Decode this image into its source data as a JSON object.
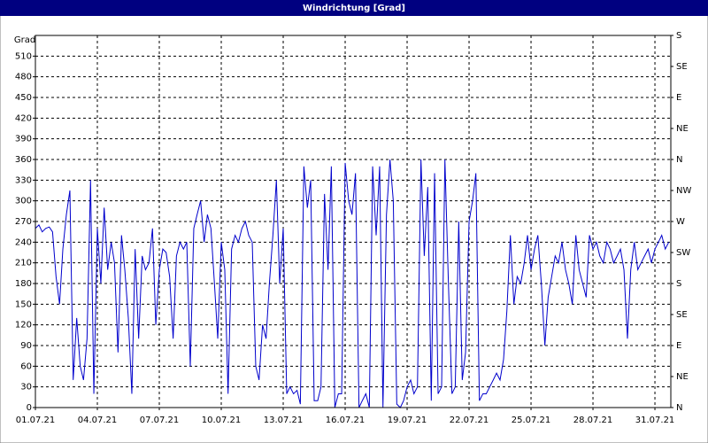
{
  "chart_data": {
    "type": "line",
    "title": "Windrichtung [Grad]",
    "y_label": "Grad",
    "x": [
      1,
      1.17,
      1.33,
      1.5,
      1.67,
      1.83,
      2,
      2.17,
      2.33,
      2.5,
      2.67,
      2.83,
      3,
      3.17,
      3.33,
      3.5,
      3.67,
      3.83,
      4,
      4.17,
      4.33,
      4.5,
      4.67,
      4.83,
      5,
      5.17,
      5.33,
      5.5,
      5.67,
      5.83,
      6,
      6.17,
      6.33,
      6.5,
      6.67,
      6.83,
      7,
      7.17,
      7.33,
      7.5,
      7.67,
      7.83,
      8,
      8.17,
      8.33,
      8.5,
      8.67,
      8.83,
      9,
      9.17,
      9.33,
      9.5,
      9.67,
      9.83,
      10,
      10.17,
      10.33,
      10.5,
      10.67,
      10.83,
      11,
      11.17,
      11.33,
      11.5,
      11.67,
      11.83,
      12,
      12.17,
      12.33,
      12.5,
      12.67,
      12.83,
      13,
      13.17,
      13.33,
      13.5,
      13.67,
      13.83,
      14,
      14.17,
      14.33,
      14.5,
      14.67,
      14.83,
      15,
      15.17,
      15.33,
      15.5,
      15.67,
      15.83,
      16,
      16.17,
      16.33,
      16.5,
      16.67,
      16.83,
      17,
      17.17,
      17.33,
      17.5,
      17.67,
      17.83,
      18,
      18.17,
      18.33,
      18.5,
      18.67,
      18.83,
      19,
      19.17,
      19.33,
      19.5,
      19.67,
      19.83,
      20,
      20.17,
      20.33,
      20.5,
      20.67,
      20.83,
      21,
      21.17,
      21.33,
      21.5,
      21.67,
      21.83,
      22,
      22.17,
      22.33,
      22.5,
      22.67,
      22.83,
      23,
      23.17,
      23.33,
      23.5,
      23.67,
      23.83,
      24,
      24.17,
      24.33,
      24.5,
      24.67,
      24.83,
      25,
      25.17,
      25.33,
      25.5,
      25.67,
      25.83,
      26,
      26.17,
      26.33,
      26.5,
      26.67,
      26.83,
      27,
      27.17,
      27.33,
      27.5,
      27.67,
      27.83,
      28,
      28.17,
      28.33,
      28.5,
      28.67,
      28.83,
      29,
      29.17,
      29.33,
      29.5,
      29.67,
      29.83,
      30,
      30.17,
      30.33,
      30.5,
      30.67,
      30.83,
      31,
      31.17,
      31.33,
      31.5,
      31.67
    ],
    "series": [
      {
        "name": "Windrichtung",
        "color": "#0000cc",
        "values": [
          260,
          265,
          255,
          260,
          262,
          255,
          190,
          150,
          230,
          280,
          315,
          40,
          130,
          60,
          40,
          100,
          330,
          20,
          260,
          180,
          290,
          200,
          240,
          210,
          80,
          250,
          200,
          130,
          20,
          230,
          100,
          220,
          200,
          210,
          260,
          120,
          200,
          230,
          225,
          190,
          100,
          220,
          240,
          230,
          240,
          60,
          260,
          280,
          300,
          240,
          280,
          260,
          180,
          100,
          240,
          200,
          20,
          230,
          250,
          240,
          260,
          270,
          250,
          240,
          60,
          40,
          120,
          100,
          180,
          250,
          330,
          180,
          260,
          20,
          30,
          20,
          25,
          5,
          350,
          290,
          330,
          10,
          10,
          30,
          310,
          200,
          350,
          0,
          20,
          20,
          355,
          300,
          280,
          340,
          0,
          10,
          20,
          0,
          350,
          250,
          350,
          0,
          280,
          360,
          300,
          5,
          0,
          10,
          30,
          40,
          20,
          30,
          360,
          220,
          320,
          10,
          340,
          20,
          30,
          360,
          180,
          20,
          30,
          270,
          40,
          80,
          270,
          300,
          340,
          10,
          20,
          20,
          30,
          40,
          50,
          40,
          70,
          140,
          250,
          150,
          190,
          180,
          210,
          250,
          200,
          230,
          250,
          180,
          90,
          160,
          190,
          220,
          210,
          240,
          200,
          180,
          150,
          250,
          200,
          180,
          160,
          250,
          230,
          240,
          220,
          210,
          240,
          230,
          210,
          220,
          230,
          200,
          100,
          200,
          240,
          200,
          210,
          220,
          230,
          210,
          230,
          240,
          250,
          230,
          240
        ]
      }
    ],
    "xlim": [
      1,
      31.77
    ],
    "xticks": [
      {
        "value": 1,
        "label": "01.07.21"
      },
      {
        "value": 4,
        "label": "04.07.21"
      },
      {
        "value": 7,
        "label": "07.07.21"
      },
      {
        "value": 10,
        "label": "10.07.21"
      },
      {
        "value": 13,
        "label": "13.07.21"
      },
      {
        "value": 16,
        "label": "16.07.21"
      },
      {
        "value": 19,
        "label": "19.07.21"
      },
      {
        "value": 22,
        "label": "22.07.21"
      },
      {
        "value": 25,
        "label": "25.07.21"
      },
      {
        "value": 28,
        "label": "28.07.21"
      },
      {
        "value": 31,
        "label": "31.07.21"
      }
    ],
    "ylim": [
      0,
      540
    ],
    "yticks": [
      0,
      30,
      60,
      90,
      120,
      150,
      180,
      210,
      240,
      270,
      300,
      330,
      360,
      390,
      420,
      450,
      480,
      510
    ],
    "y2lim": [
      0,
      540
    ],
    "y2ticks": [
      {
        "value": 0,
        "label": "N"
      },
      {
        "value": 45,
        "label": "NE"
      },
      {
        "value": 90,
        "label": "E"
      },
      {
        "value": 135,
        "label": "SE"
      },
      {
        "value": 180,
        "label": "S"
      },
      {
        "value": 225,
        "label": "SW"
      },
      {
        "value": 270,
        "label": "W"
      },
      {
        "value": 315,
        "label": "NW"
      },
      {
        "value": 360,
        "label": "N"
      },
      {
        "value": 405,
        "label": "NE"
      },
      {
        "value": 450,
        "label": "E"
      },
      {
        "value": 495,
        "label": "SE"
      },
      {
        "value": 540,
        "label": "S"
      }
    ],
    "grid": true
  }
}
